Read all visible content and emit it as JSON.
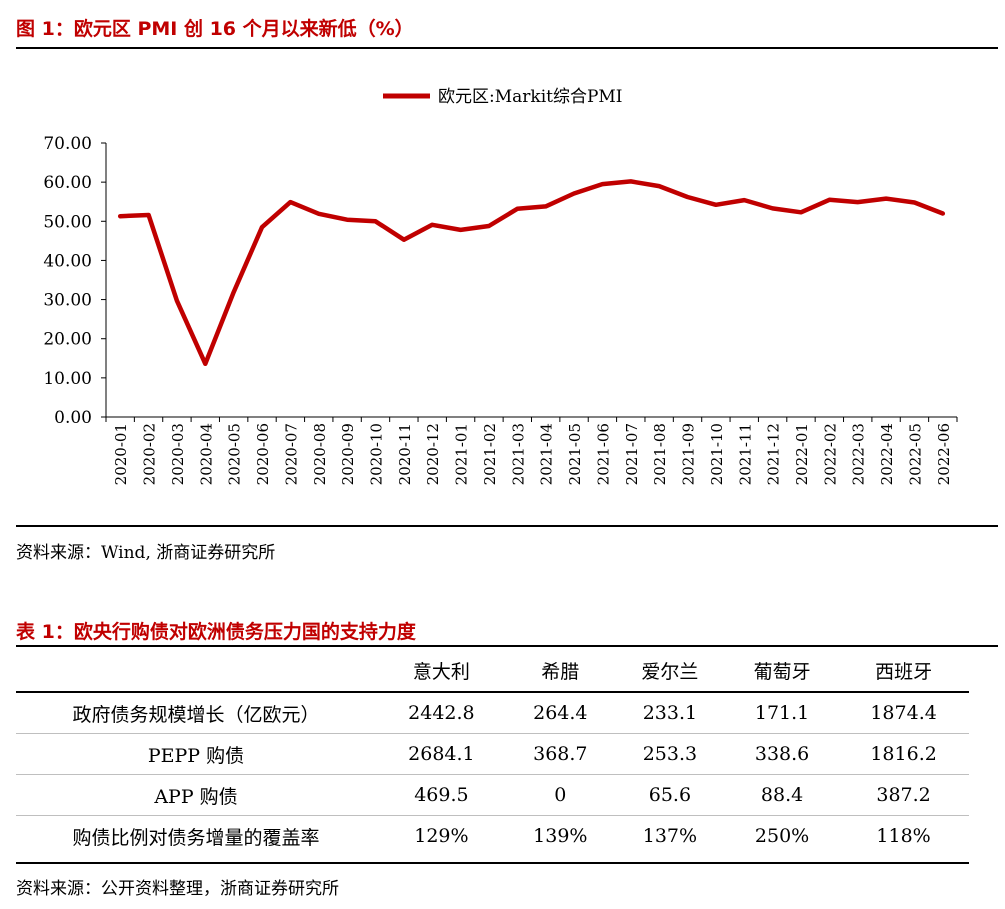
{
  "figure": {
    "title": "图 1：欧元区 PMI 创 16 个月以来新低（%）",
    "source": "资料来源：Wind, 浙商证券研究所"
  },
  "chart_data": {
    "type": "line",
    "series": [
      {
        "name": "欧元区:Markit综合PMI",
        "color": "#c00000",
        "values": [
          51.3,
          51.6,
          29.7,
          13.6,
          31.9,
          48.5,
          54.9,
          51.9,
          50.4,
          50.0,
          45.3,
          49.1,
          47.8,
          48.8,
          53.2,
          53.8,
          57.1,
          59.5,
          60.2,
          59.0,
          56.2,
          54.2,
          55.4,
          53.3,
          52.3,
          55.5,
          54.9,
          55.8,
          54.8,
          52.0
        ]
      }
    ],
    "categories": [
      "2020-01",
      "2020-02",
      "2020-03",
      "2020-04",
      "2020-05",
      "2020-06",
      "2020-07",
      "2020-08",
      "2020-09",
      "2020-10",
      "2020-11",
      "2020-12",
      "2021-01",
      "2021-02",
      "2021-03",
      "2021-04",
      "2021-05",
      "2021-06",
      "2021-07",
      "2021-08",
      "2021-09",
      "2021-10",
      "2021-11",
      "2021-12",
      "2022-01",
      "2022-02",
      "2022-03",
      "2022-04",
      "2022-05",
      "2022-06"
    ],
    "yticks": [
      "0.00",
      "10.00",
      "20.00",
      "30.00",
      "40.00",
      "50.00",
      "60.00",
      "70.00"
    ],
    "ylim": [
      0,
      70
    ],
    "legend_position": "top-center",
    "grid": false
  },
  "table": {
    "title": "表 1：欧央行购债对欧洲债务压力国的支持力度",
    "columns": [
      "意大利",
      "希腊",
      "爱尔兰",
      "葡萄牙",
      "西班牙"
    ],
    "rows": [
      {
        "label": "政府债务规模增长（亿欧元）",
        "values": [
          "2442.8",
          "264.4",
          "233.1",
          "171.1",
          "1874.4"
        ]
      },
      {
        "label": "PEPP 购债",
        "values": [
          "2684.1",
          "368.7",
          "253.3",
          "338.6",
          "1816.2"
        ]
      },
      {
        "label": "APP 购债",
        "values": [
          "469.5",
          "0",
          "65.6",
          "88.4",
          "387.2"
        ]
      },
      {
        "label": "购债比例对债务增量的覆盖率",
        "values": [
          "129%",
          "139%",
          "137%",
          "250%",
          "118%"
        ]
      }
    ],
    "source": "资料来源：公开资料整理，浙商证券研究所"
  }
}
